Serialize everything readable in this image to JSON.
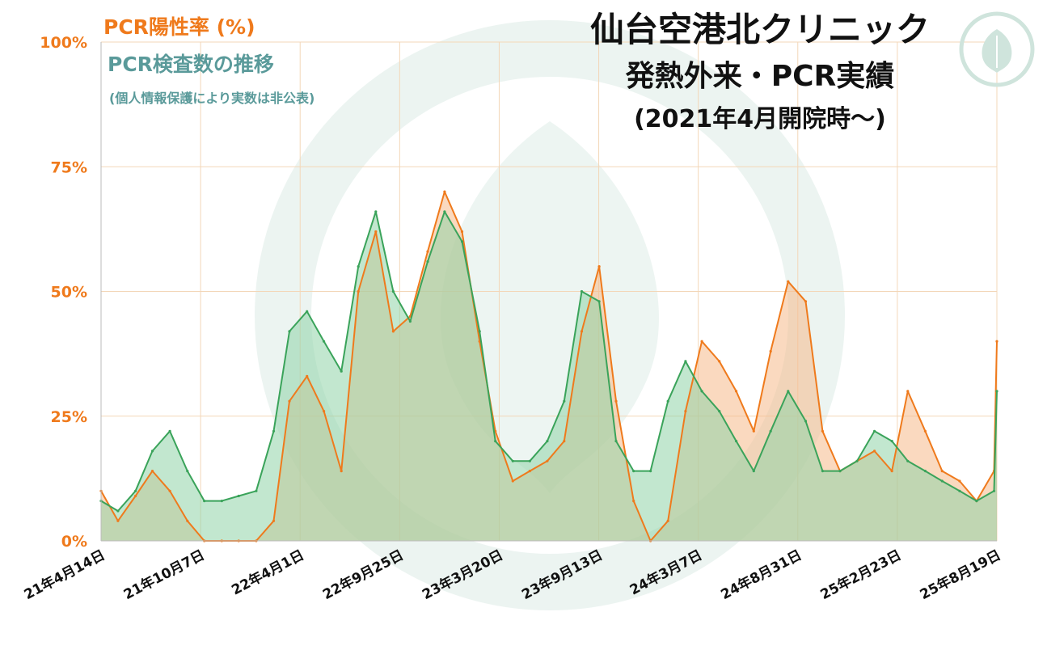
{
  "title": {
    "line1": "仙台空港北クリニック",
    "line2": "発熱外来・PCR実績",
    "line3": "(2021年4月開院時〜)"
  },
  "legend": {
    "positivity_label": "PCR陽性率 (%)",
    "tests_label": "PCR検査数の推移",
    "tests_note": "(個人情報保護により実数は非公表)"
  },
  "colors": {
    "positivity": "#ef7a1c",
    "tests": "#3aa35a",
    "positivity_fill": "#f6b98a",
    "tests_fill": "#8fd3a8",
    "overlap_fill": "#b7c08f",
    "gridline": "#f3d7b8",
    "tick_label": "#ef7a1c",
    "watermark": "#dcebe6"
  },
  "chart_data": {
    "type": "area",
    "ylabel": "",
    "ylim": [
      0,
      100
    ],
    "y_ticks": [
      "0%",
      "25%",
      "50%",
      "75%",
      "100%"
    ],
    "x_ticks": [
      "21年4月14日",
      "21年10月7日",
      "22年4月1日",
      "22年9月25日",
      "23年3月20日",
      "23年9月13日",
      "24年3月7日",
      "24年8月31日",
      "25年2月23日",
      "25年8月19日"
    ],
    "x_range": [
      "2021-04-14",
      "2025-08-19"
    ],
    "grid": true,
    "series": [
      {
        "name": "PCR陽性率 (%)",
        "x": [
          "2021-04-14",
          "2021-05-14",
          "2021-06-14",
          "2021-07-14",
          "2021-08-14",
          "2021-09-14",
          "2021-10-14",
          "2021-11-14",
          "2021-12-14",
          "2022-01-14",
          "2022-02-14",
          "2022-03-14",
          "2022-04-14",
          "2022-05-14",
          "2022-06-14",
          "2022-07-14",
          "2022-08-14",
          "2022-09-14",
          "2022-10-14",
          "2022-11-14",
          "2022-12-14",
          "2023-01-14",
          "2023-02-14",
          "2023-03-14",
          "2023-04-14",
          "2023-05-14",
          "2023-06-14",
          "2023-07-14",
          "2023-08-14",
          "2023-09-14",
          "2023-10-14",
          "2023-11-14",
          "2023-12-14",
          "2024-01-14",
          "2024-02-14",
          "2024-03-14",
          "2024-04-14",
          "2024-05-14",
          "2024-06-14",
          "2024-07-14",
          "2024-08-14",
          "2024-09-14",
          "2024-10-14",
          "2024-11-14",
          "2024-12-14",
          "2025-01-14",
          "2025-02-14",
          "2025-03-14",
          "2025-04-14",
          "2025-05-14",
          "2025-06-14",
          "2025-07-14",
          "2025-08-14",
          "2025-08-19"
        ],
        "values": [
          10,
          4,
          9,
          14,
          10,
          4,
          0,
          0,
          0,
          0,
          4,
          28,
          33,
          26,
          14,
          50,
          62,
          42,
          45,
          58,
          70,
          62,
          40,
          22,
          12,
          14,
          16,
          20,
          42,
          55,
          28,
          8,
          0,
          4,
          26,
          40,
          36,
          30,
          22,
          38,
          52,
          48,
          22,
          14,
          16,
          18,
          14,
          30,
          22,
          14,
          12,
          8,
          14,
          40
        ]
      },
      {
        "name": "PCR検査数の推移",
        "x": [
          "2021-04-14",
          "2021-05-14",
          "2021-06-14",
          "2021-07-14",
          "2021-08-14",
          "2021-09-14",
          "2021-10-14",
          "2021-11-14",
          "2021-12-14",
          "2022-01-14",
          "2022-02-14",
          "2022-03-14",
          "2022-04-14",
          "2022-05-14",
          "2022-06-14",
          "2022-07-14",
          "2022-08-14",
          "2022-09-14",
          "2022-10-14",
          "2022-11-14",
          "2022-12-14",
          "2023-01-14",
          "2023-02-14",
          "2023-03-14",
          "2023-04-14",
          "2023-05-14",
          "2023-06-14",
          "2023-07-14",
          "2023-08-14",
          "2023-09-14",
          "2023-10-14",
          "2023-11-14",
          "2023-12-14",
          "2024-01-14",
          "2024-02-14",
          "2024-03-14",
          "2024-04-14",
          "2024-05-14",
          "2024-06-14",
          "2024-07-14",
          "2024-08-14",
          "2024-09-14",
          "2024-10-14",
          "2024-11-14",
          "2024-12-14",
          "2025-01-14",
          "2025-02-14",
          "2025-03-14",
          "2025-04-14",
          "2025-05-14",
          "2025-06-14",
          "2025-07-14",
          "2025-08-14",
          "2025-08-19"
        ],
        "values": [
          8,
          6,
          10,
          18,
          22,
          14,
          8,
          8,
          9,
          10,
          22,
          42,
          46,
          40,
          34,
          55,
          66,
          50,
          44,
          56,
          66,
          60,
          42,
          20,
          16,
          16,
          20,
          28,
          50,
          48,
          20,
          14,
          14,
          28,
          36,
          30,
          26,
          20,
          14,
          22,
          30,
          24,
          14,
          14,
          16,
          22,
          20,
          16,
          14,
          12,
          10,
          8,
          10,
          30
        ]
      }
    ]
  }
}
